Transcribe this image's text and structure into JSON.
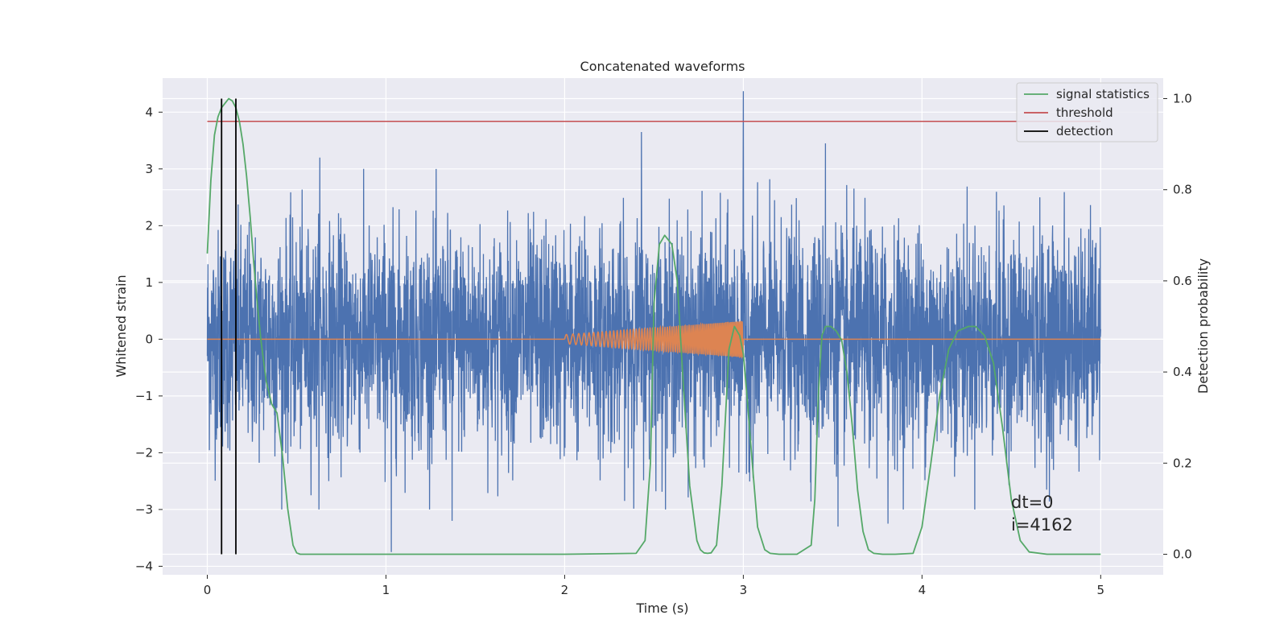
{
  "chart_data": {
    "type": "line",
    "title": "Concatenated waveforms",
    "xlabel": "Time (s)",
    "ylabel": "Whitened strain",
    "ylabel_right": "Detection probability",
    "xlim": [
      -0.25,
      5.35
    ],
    "ylim": [
      -4.15,
      4.6
    ],
    "ylim_right": [
      -0.045,
      1.045
    ],
    "x_ticks": [
      "0",
      "1",
      "2",
      "3",
      "4",
      "5"
    ],
    "y_ticks": [
      "−4",
      "−3",
      "−2",
      "−1",
      "0",
      "1",
      "2",
      "3",
      "4"
    ],
    "y_ticks_right": [
      "0.0",
      "0.2",
      "0.4",
      "0.6",
      "0.8",
      "1.0"
    ],
    "grid": true,
    "legend_position": "top-right",
    "legend": [
      {
        "label": "signal statistics",
        "color": "#55a868"
      },
      {
        "label": "threshold",
        "color": "#c44e52"
      },
      {
        "label": "detection",
        "color": "#000000"
      }
    ],
    "colors": {
      "strain": "#4c72b0",
      "template": "#dd8452",
      "signal_statistics": "#55a868",
      "threshold": "#c44e52",
      "detection": "#000000",
      "plot_background": "#eaeaf2",
      "grid": "#ffffff"
    },
    "series": [
      {
        "name": "",
        "axis": "left",
        "description_values": "whitened strain noise, roughly N(0,1) with occasional spikes",
        "x_range": [
          0,
          5
        ],
        "spikes": [
          [
            0.63,
            3.2
          ],
          [
            2.43,
            3.65
          ],
          [
            3.0,
            4.37
          ],
          [
            3.46,
            3.45
          ],
          [
            1.03,
            -3.75
          ],
          [
            1.37,
            -3.2
          ],
          [
            3.53,
            -3.3
          ],
          [
            3.81,
            -3.25
          ]
        ]
      },
      {
        "name": "",
        "axis": "left",
        "description_values": "chirp template injected between 2 s and 3 s, amplitude growing to ~0.3",
        "x_range": [
          2.0,
          3.0
        ],
        "amplitude_start": 0.08,
        "amplitude_end": 0.32
      },
      {
        "name": "signal statistics",
        "axis": "right",
        "x": [
          0,
          0.02,
          0.04,
          0.06,
          0.08,
          0.1,
          0.12,
          0.14,
          0.16,
          0.18,
          0.2,
          0.22,
          0.24,
          0.26,
          0.28,
          0.3,
          0.33,
          0.36,
          0.39,
          0.42,
          0.45,
          0.48,
          0.5,
          0.52,
          0.6,
          1.0,
          1.5,
          2.0,
          2.4,
          2.45,
          2.48,
          2.5,
          2.53,
          2.56,
          2.6,
          2.63,
          2.66,
          2.7,
          2.74,
          2.76,
          2.78,
          2.8,
          2.82,
          2.85,
          2.88,
          2.92,
          2.95,
          2.98,
          3.0,
          3.02,
          3.05,
          3.08,
          3.12,
          3.15,
          3.2,
          3.3,
          3.38,
          3.4,
          3.42,
          3.44,
          3.46,
          3.49,
          3.52,
          3.55,
          3.58,
          3.61,
          3.64,
          3.67,
          3.7,
          3.73,
          3.78,
          3.85,
          3.95,
          4.0,
          4.05,
          4.1,
          4.15,
          4.2,
          4.26,
          4.3,
          4.35,
          4.4,
          4.45,
          4.5,
          4.55,
          4.6,
          4.7,
          5.0
        ],
        "values": [
          0.66,
          0.82,
          0.92,
          0.96,
          0.98,
          0.99,
          1.0,
          0.995,
          0.98,
          0.95,
          0.9,
          0.83,
          0.74,
          0.64,
          0.55,
          0.47,
          0.38,
          0.33,
          0.31,
          0.22,
          0.1,
          0.02,
          0.003,
          0.0,
          0.0,
          0.0,
          0.0,
          0.0,
          0.002,
          0.03,
          0.2,
          0.55,
          0.68,
          0.7,
          0.68,
          0.6,
          0.4,
          0.15,
          0.03,
          0.01,
          0.003,
          0.002,
          0.003,
          0.02,
          0.15,
          0.45,
          0.5,
          0.48,
          0.44,
          0.35,
          0.2,
          0.06,
          0.01,
          0.002,
          0.0,
          0.0,
          0.02,
          0.12,
          0.35,
          0.48,
          0.5,
          0.5,
          0.49,
          0.47,
          0.4,
          0.28,
          0.14,
          0.05,
          0.01,
          0.002,
          0.0,
          0.0,
          0.002,
          0.06,
          0.2,
          0.35,
          0.45,
          0.49,
          0.5,
          0.5,
          0.48,
          0.42,
          0.28,
          0.12,
          0.03,
          0.005,
          0.0,
          0.0
        ]
      },
      {
        "name": "threshold",
        "axis": "right",
        "x": [
          0,
          5
        ],
        "values": [
          0.95,
          0.95
        ]
      },
      {
        "name": "detection",
        "axis": "right",
        "vertical_lines_x": [
          0.08,
          0.16
        ],
        "span": [
          0.0,
          1.0
        ]
      }
    ],
    "annotations": [
      "dt=0",
      "i=4162"
    ]
  }
}
